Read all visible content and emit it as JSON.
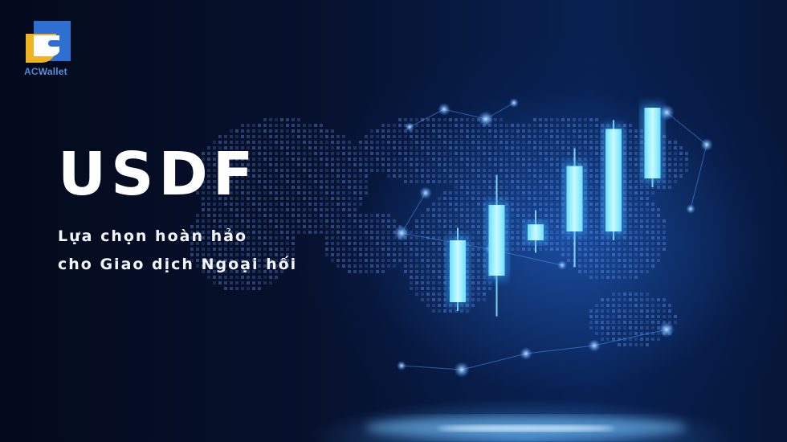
{
  "brand": {
    "name_prefix": "AC",
    "name_suffix": "Wallet",
    "logo_icon": "wallet-icon",
    "colors": {
      "primary": "#2f6fd0",
      "accent": "#f0b323"
    }
  },
  "hero": {
    "title": "USDF",
    "subtitle_line1": "Lựa chọn hoàn hảo",
    "subtitle_line2": "cho Giao dịch Ngoại hối"
  },
  "illustration": {
    "icon": "candlestick-chart-icon",
    "background_icon": "world-map-dots-icon",
    "candles": [
      {
        "open": 20,
        "close": 55,
        "high": 62,
        "low": 15
      },
      {
        "open": 35,
        "close": 75,
        "high": 92,
        "low": 12
      },
      {
        "open": 55,
        "close": 64,
        "high": 72,
        "low": 48
      },
      {
        "open": 60,
        "close": 97,
        "high": 107,
        "low": 40
      },
      {
        "open": 60,
        "close": 118,
        "high": 123,
        "low": 55
      },
      {
        "open": 90,
        "close": 130,
        "high": 130,
        "low": 85
      }
    ],
    "colors": {
      "candle": "#8fefff",
      "glow": "#3aa7ff"
    }
  }
}
